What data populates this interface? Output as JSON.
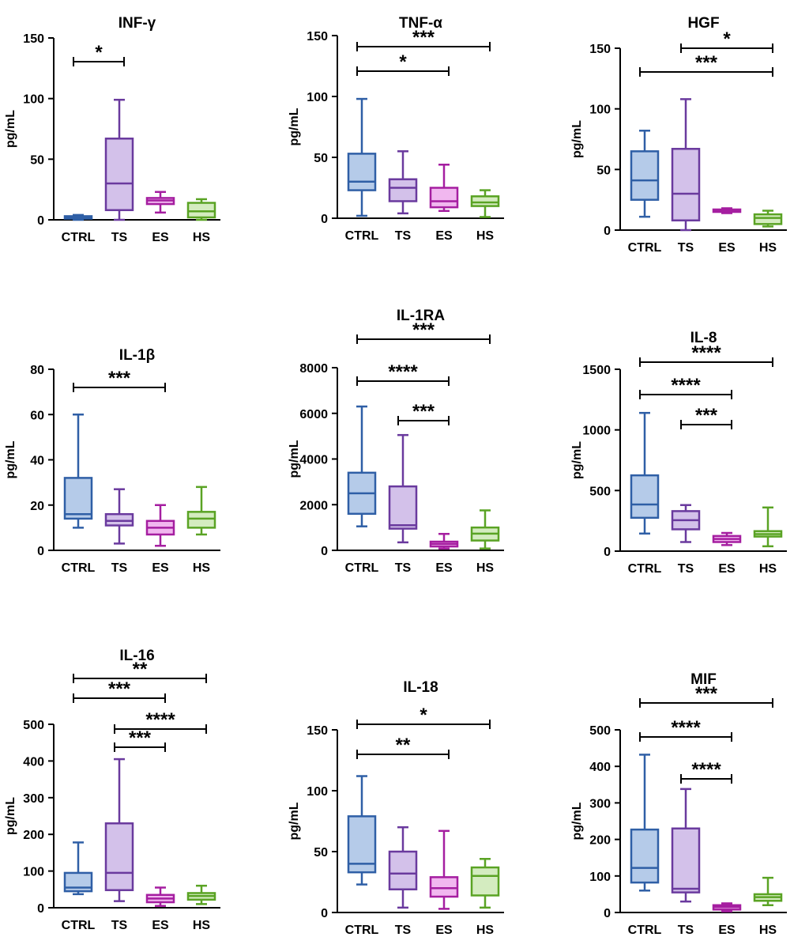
{
  "chart_data": [
    {
      "type": "boxplot",
      "title": "INF-γ",
      "ylabel": "pg/mL",
      "ylim": [
        0,
        150
      ],
      "yticks": [
        0,
        50,
        100,
        150
      ],
      "categories": [
        "CTRL",
        "TS",
        "ES",
        "HS"
      ],
      "boxes": [
        {
          "min": 0,
          "q1": 1,
          "median": 2,
          "q3": 3,
          "max": 4
        },
        {
          "min": 0,
          "q1": 8,
          "median": 30,
          "q3": 67,
          "max": 99
        },
        {
          "min": 6,
          "q1": 13,
          "median": 16,
          "q3": 18,
          "max": 23
        },
        {
          "min": 0,
          "q1": 2,
          "median": 7,
          "q3": 14,
          "max": 17
        }
      ],
      "significance": [
        {
          "from": 0,
          "to": 1,
          "label": "*"
        }
      ]
    },
    {
      "type": "boxplot",
      "title": "TNF-α",
      "ylabel": "pg/mL",
      "ylim": [
        0,
        150
      ],
      "yticks": [
        0,
        50,
        100,
        150
      ],
      "categories": [
        "CTRL",
        "TS",
        "ES",
        "HS"
      ],
      "boxes": [
        {
          "min": 2,
          "q1": 23,
          "median": 30,
          "q3": 53,
          "max": 98
        },
        {
          "min": 4,
          "q1": 14,
          "median": 25,
          "q3": 32,
          "max": 55
        },
        {
          "min": 6,
          "q1": 9,
          "median": 14,
          "q3": 25,
          "max": 44
        },
        {
          "min": 1,
          "q1": 10,
          "median": 13,
          "q3": 18,
          "max": 23
        }
      ],
      "significance": [
        {
          "from": 0,
          "to": 3,
          "label": "***"
        },
        {
          "from": 0,
          "to": 2,
          "label": "*"
        }
      ]
    },
    {
      "type": "boxplot",
      "title": "HGF",
      "ylabel": "pg/mL",
      "ylim": [
        0,
        150
      ],
      "yticks": [
        0,
        50,
        100,
        150
      ],
      "categories": [
        "CTRL",
        "TS",
        "ES",
        "HS"
      ],
      "boxes": [
        {
          "min": 11,
          "q1": 25,
          "median": 41,
          "q3": 65,
          "max": 82
        },
        {
          "min": 0,
          "q1": 8,
          "median": 30,
          "q3": 67,
          "max": 108
        },
        {
          "min": 14,
          "q1": 15,
          "median": 16,
          "q3": 17,
          "max": 18
        },
        {
          "min": 3,
          "q1": 5,
          "median": 10,
          "q3": 13,
          "max": 16
        }
      ],
      "significance": [
        {
          "from": 1,
          "to": 3,
          "label": "*"
        },
        {
          "from": 0,
          "to": 3,
          "label": "***"
        }
      ]
    },
    {
      "type": "boxplot",
      "title": "IL-1β",
      "ylabel": "pg/mL",
      "ylim": [
        0,
        80
      ],
      "yticks": [
        0,
        20,
        40,
        60,
        80
      ],
      "categories": [
        "CTRL",
        "TS",
        "ES",
        "HS"
      ],
      "boxes": [
        {
          "min": 10,
          "q1": 14,
          "median": 16,
          "q3": 32,
          "max": 60
        },
        {
          "min": 3,
          "q1": 11,
          "median": 13,
          "q3": 16,
          "max": 27
        },
        {
          "min": 2,
          "q1": 7,
          "median": 10,
          "q3": 13,
          "max": 20
        },
        {
          "min": 7,
          "q1": 10,
          "median": 14,
          "q3": 17,
          "max": 28
        }
      ],
      "significance": [
        {
          "from": 0,
          "to": 2,
          "label": "***"
        }
      ]
    },
    {
      "type": "boxplot",
      "title": "IL-1RA",
      "ylabel": "pg/mL",
      "ylim": [
        0,
        8000
      ],
      "yticks": [
        0,
        2000,
        4000,
        6000,
        8000
      ],
      "categories": [
        "CTRL",
        "TS",
        "ES",
        "HS"
      ],
      "boxes": [
        {
          "min": 1050,
          "q1": 1600,
          "median": 2500,
          "q3": 3400,
          "max": 6300
        },
        {
          "min": 350,
          "q1": 950,
          "median": 1100,
          "q3": 2800,
          "max": 5050
        },
        {
          "min": 80,
          "q1": 170,
          "median": 280,
          "q3": 380,
          "max": 720
        },
        {
          "min": 80,
          "q1": 430,
          "median": 730,
          "q3": 1000,
          "max": 1750
        }
      ],
      "significance": [
        {
          "from": 0,
          "to": 3,
          "label": "***"
        },
        {
          "from": 0,
          "to": 2,
          "label": "****"
        },
        {
          "from": 1,
          "to": 2,
          "label": "***"
        }
      ]
    },
    {
      "type": "boxplot",
      "title": "IL-8",
      "ylabel": "pg/mL",
      "ylim": [
        0,
        1500
      ],
      "yticks": [
        0,
        500,
        1000,
        1500
      ],
      "categories": [
        "CTRL",
        "TS",
        "ES",
        "HS"
      ],
      "boxes": [
        {
          "min": 145,
          "q1": 275,
          "median": 385,
          "q3": 625,
          "max": 1140
        },
        {
          "min": 75,
          "q1": 180,
          "median": 255,
          "q3": 330,
          "max": 380
        },
        {
          "min": 50,
          "q1": 75,
          "median": 100,
          "q3": 125,
          "max": 150
        },
        {
          "min": 40,
          "q1": 120,
          "median": 140,
          "q3": 165,
          "max": 360
        }
      ],
      "significance": [
        {
          "from": 0,
          "to": 3,
          "label": "****"
        },
        {
          "from": 0,
          "to": 2,
          "label": "****"
        },
        {
          "from": 1,
          "to": 2,
          "label": "***"
        }
      ]
    },
    {
      "type": "boxplot",
      "title": "IL-16",
      "ylabel": "pg/mL",
      "ylim": [
        0,
        500
      ],
      "yticks": [
        0,
        100,
        200,
        300,
        400,
        500
      ],
      "categories": [
        "CTRL",
        "TS",
        "ES",
        "HS"
      ],
      "boxes": [
        {
          "min": 37,
          "q1": 45,
          "median": 55,
          "q3": 95,
          "max": 178
        },
        {
          "min": 18,
          "q1": 48,
          "median": 95,
          "q3": 230,
          "max": 405
        },
        {
          "min": 5,
          "q1": 15,
          "median": 25,
          "q3": 35,
          "max": 55
        },
        {
          "min": 10,
          "q1": 22,
          "median": 32,
          "q3": 40,
          "max": 60
        }
      ],
      "significance": [
        {
          "from": 0,
          "to": 3,
          "label": "**"
        },
        {
          "from": 0,
          "to": 2,
          "label": "***"
        },
        {
          "from": 1,
          "to": 3,
          "label": "****"
        },
        {
          "from": 1,
          "to": 2,
          "label": "***"
        }
      ]
    },
    {
      "type": "boxplot",
      "title": "IL-18",
      "ylabel": "pg/mL",
      "ylim": [
        0,
        150
      ],
      "yticks": [
        0,
        50,
        100,
        150
      ],
      "categories": [
        "CTRL",
        "TS",
        "ES",
        "HS"
      ],
      "boxes": [
        {
          "min": 23,
          "q1": 33,
          "median": 40,
          "q3": 79,
          "max": 112
        },
        {
          "min": 4,
          "q1": 19,
          "median": 32,
          "q3": 50,
          "max": 70
        },
        {
          "min": 3,
          "q1": 13,
          "median": 20,
          "q3": 29,
          "max": 67
        },
        {
          "min": 4,
          "q1": 14,
          "median": 30,
          "q3": 37,
          "max": 44
        }
      ],
      "significance": [
        {
          "from": 0,
          "to": 3,
          "label": "*"
        },
        {
          "from": 0,
          "to": 2,
          "label": "**"
        }
      ]
    },
    {
      "type": "boxplot",
      "title": "MIF",
      "ylabel": "pg/mL",
      "ylim": [
        0,
        500
      ],
      "yticks": [
        0,
        100,
        200,
        300,
        400,
        500
      ],
      "categories": [
        "CTRL",
        "TS",
        "ES",
        "HS"
      ],
      "boxes": [
        {
          "min": 60,
          "q1": 82,
          "median": 122,
          "q3": 227,
          "max": 432
        },
        {
          "min": 30,
          "q1": 55,
          "median": 65,
          "q3": 230,
          "max": 338
        },
        {
          "min": 3,
          "q1": 8,
          "median": 15,
          "q3": 20,
          "max": 25
        },
        {
          "min": 20,
          "q1": 32,
          "median": 42,
          "q3": 50,
          "max": 95
        }
      ],
      "significance": [
        {
          "from": 0,
          "to": 3,
          "label": "***"
        },
        {
          "from": 0,
          "to": 2,
          "label": "****"
        },
        {
          "from": 1,
          "to": 2,
          "label": "****"
        }
      ]
    }
  ],
  "palette": [
    {
      "stroke": "#2f5fa6",
      "fill": "#b5cbe9"
    },
    {
      "stroke": "#6a3a9e",
      "fill": "#d3c1ea"
    },
    {
      "stroke": "#a51ea0",
      "fill": "#f1b7ef"
    },
    {
      "stroke": "#5aa324",
      "fill": "#d4ecc0"
    }
  ]
}
